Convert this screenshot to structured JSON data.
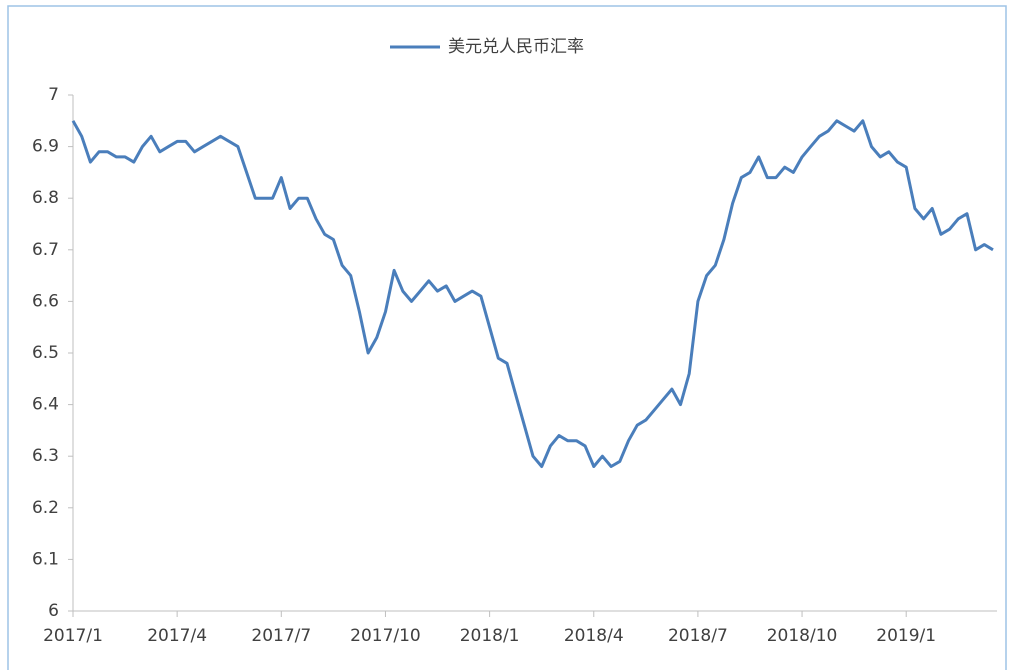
{
  "chart_data": {
    "type": "line",
    "categories": [
      "2017/1",
      null,
      null,
      null,
      null,
      null,
      null,
      null,
      null,
      null,
      null,
      null,
      "2017/4",
      null,
      null,
      null,
      null,
      null,
      null,
      null,
      null,
      null,
      null,
      null,
      "2017/7",
      null,
      null,
      null,
      null,
      null,
      null,
      null,
      null,
      null,
      null,
      null,
      "2017/10",
      null,
      null,
      null,
      null,
      null,
      null,
      null,
      null,
      null,
      null,
      null,
      "2018/1",
      null,
      null,
      null,
      null,
      null,
      null,
      null,
      null,
      null,
      null,
      null,
      "2018/4",
      null,
      null,
      null,
      null,
      null,
      null,
      null,
      null,
      null,
      null,
      null,
      "2018/7",
      null,
      null,
      null,
      null,
      null,
      null,
      null,
      null,
      null,
      null,
      null,
      "2018/10",
      null,
      null,
      null,
      null,
      null,
      null,
      null,
      null,
      null,
      null,
      null,
      "2019/1",
      null,
      null,
      null,
      null,
      null,
      null,
      null,
      null,
      null,
      null
    ],
    "series": [
      {
        "name": "美元兑人民币汇率",
        "color": "#4a7ebb",
        "values": [
          6.95,
          6.92,
          6.87,
          6.89,
          6.89,
          6.88,
          6.88,
          6.87,
          6.9,
          6.92,
          6.89,
          6.9,
          6.91,
          6.91,
          6.89,
          6.9,
          6.91,
          6.92,
          6.91,
          6.9,
          6.85,
          6.8,
          6.8,
          6.8,
          6.84,
          6.78,
          6.8,
          6.8,
          6.76,
          6.73,
          6.72,
          6.67,
          6.65,
          6.58,
          6.5,
          6.53,
          6.58,
          6.66,
          6.62,
          6.6,
          6.62,
          6.64,
          6.62,
          6.63,
          6.6,
          6.61,
          6.62,
          6.61,
          6.55,
          6.49,
          6.48,
          6.42,
          6.36,
          6.3,
          6.28,
          6.32,
          6.34,
          6.33,
          6.33,
          6.32,
          6.28,
          6.3,
          6.28,
          6.29,
          6.33,
          6.36,
          6.37,
          6.39,
          6.41,
          6.43,
          6.4,
          6.46,
          6.6,
          6.65,
          6.67,
          6.72,
          6.79,
          6.84,
          6.85,
          6.88,
          6.84,
          6.84,
          6.86,
          6.85,
          6.88,
          6.9,
          6.92,
          6.93,
          6.95,
          6.94,
          6.93,
          6.95,
          6.9,
          6.88,
          6.89,
          6.87,
          6.86,
          6.78,
          6.76,
          6.78,
          6.73,
          6.74,
          6.76,
          6.77,
          6.7,
          6.71,
          6.7
        ]
      }
    ],
    "ylim": [
      6,
      7
    ],
    "yticks": [
      6,
      6.1,
      6.2,
      6.3,
      6.4,
      6.5,
      6.6,
      6.7,
      6.8,
      6.9,
      7
    ],
    "legend": "top",
    "grid": false
  }
}
